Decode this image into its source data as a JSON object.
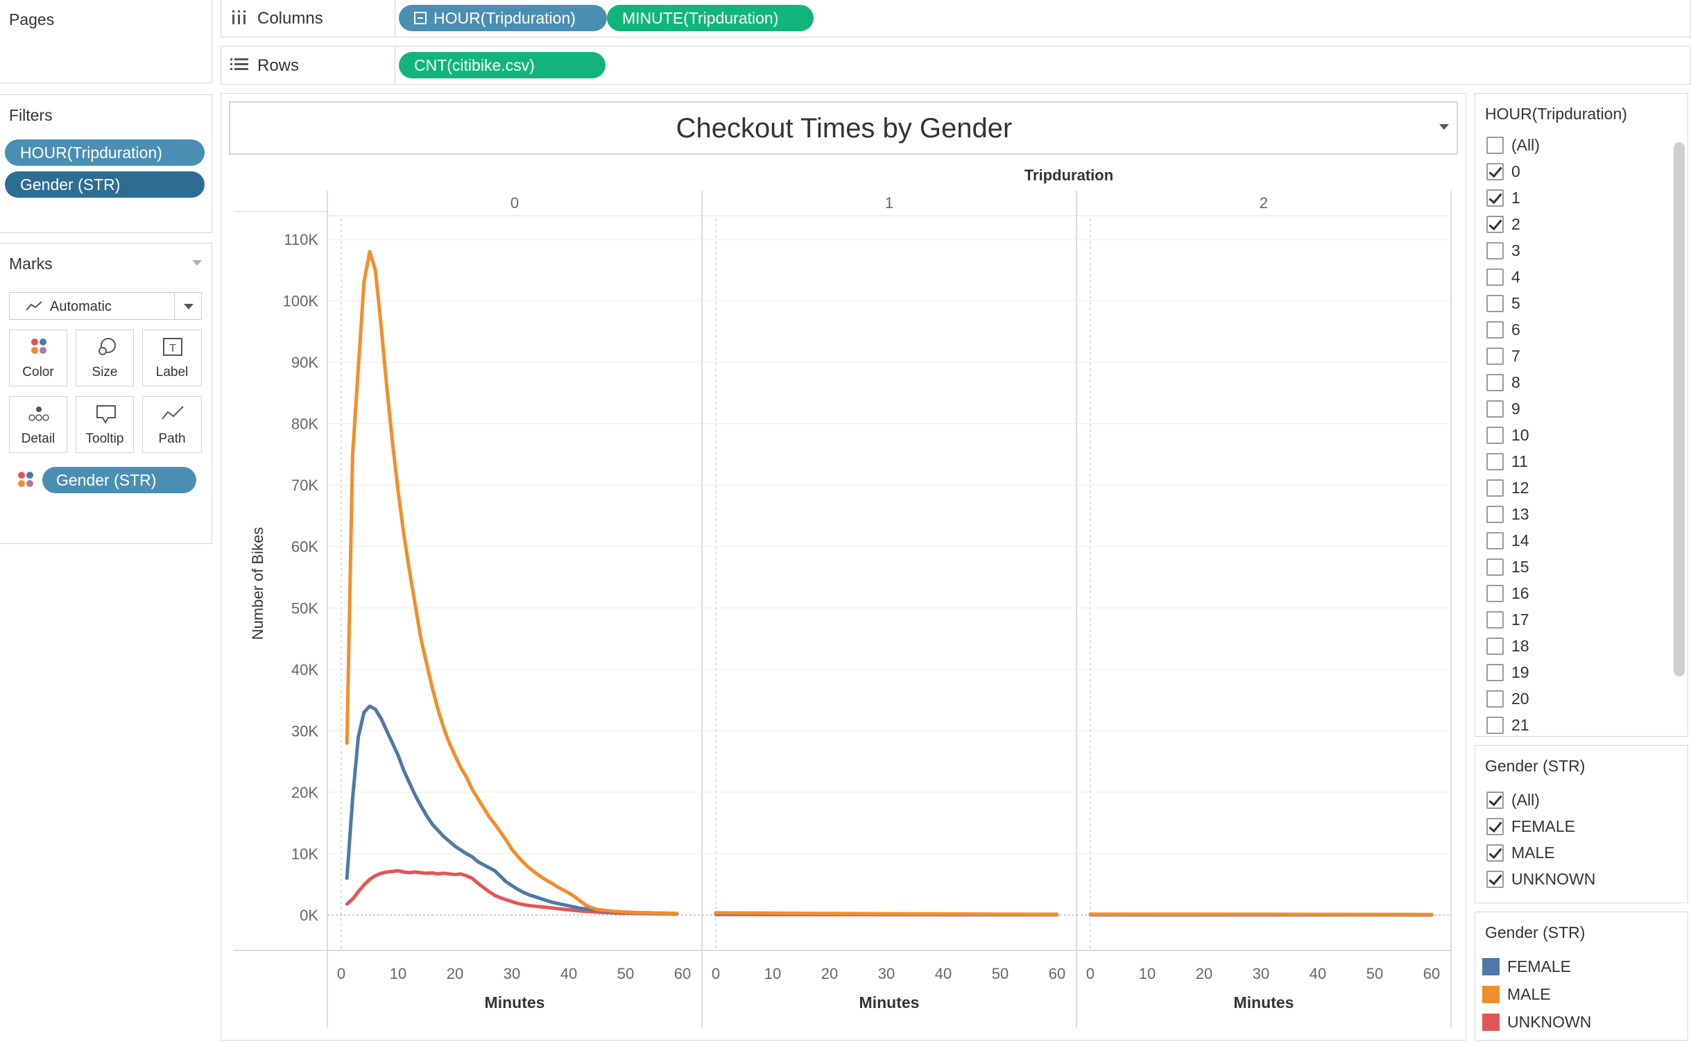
{
  "pages": {
    "title": "Pages"
  },
  "columns_shelf": {
    "label": "Columns",
    "pills": [
      "HOUR(Tripduration)",
      "MINUTE(Tripduration)"
    ]
  },
  "rows_shelf": {
    "label": "Rows",
    "pills": [
      "CNT(citibike.csv)"
    ]
  },
  "filters": {
    "title": "Filters",
    "pills": [
      "HOUR(Tripduration)",
      "Gender (STR)"
    ]
  },
  "marks": {
    "title": "Marks",
    "mark_type": "Automatic",
    "buttons": [
      "Color",
      "Size",
      "Label",
      "Detail",
      "Tooltip",
      "Path"
    ],
    "field_pill": "Gender (STR)"
  },
  "hour_filter": {
    "title": "HOUR(Tripduration)",
    "items": [
      {
        "label": "(All)",
        "checked": false
      },
      {
        "label": "0",
        "checked": true
      },
      {
        "label": "1",
        "checked": true
      },
      {
        "label": "2",
        "checked": true
      },
      {
        "label": "3",
        "checked": false
      },
      {
        "label": "4",
        "checked": false
      },
      {
        "label": "5",
        "checked": false
      },
      {
        "label": "6",
        "checked": false
      },
      {
        "label": "7",
        "checked": false
      },
      {
        "label": "8",
        "checked": false
      },
      {
        "label": "9",
        "checked": false
      },
      {
        "label": "10",
        "checked": false
      },
      {
        "label": "11",
        "checked": false
      },
      {
        "label": "12",
        "checked": false
      },
      {
        "label": "13",
        "checked": false
      },
      {
        "label": "14",
        "checked": false
      },
      {
        "label": "15",
        "checked": false
      },
      {
        "label": "16",
        "checked": false
      },
      {
        "label": "17",
        "checked": false
      },
      {
        "label": "18",
        "checked": false
      },
      {
        "label": "19",
        "checked": false
      },
      {
        "label": "20",
        "checked": false
      },
      {
        "label": "21",
        "checked": false
      }
    ]
  },
  "gender_filter": {
    "title": "Gender (STR)",
    "items": [
      {
        "label": "(All)",
        "checked": true
      },
      {
        "label": "FEMALE",
        "checked": true
      },
      {
        "label": "MALE",
        "checked": true
      },
      {
        "label": "UNKNOWN",
        "checked": true
      }
    ]
  },
  "gender_legend": {
    "title": "Gender (STR)",
    "items": [
      {
        "label": "FEMALE",
        "color": "#4e79a7"
      },
      {
        "label": "MALE",
        "color": "#f28e2b"
      },
      {
        "label": "UNKNOWN",
        "color": "#e15759"
      }
    ]
  },
  "chart_data": {
    "type": "line",
    "title": "Checkout Times by Gender",
    "column_header": "Tripduration",
    "panels": [
      "0",
      "1",
      "2"
    ],
    "xlabel": "Minutes",
    "ylabel": "Number of Bikes",
    "xlim": [
      0,
      60
    ],
    "xticks": [
      0,
      10,
      20,
      30,
      40,
      50,
      60
    ],
    "ylim": [
      0,
      115000
    ],
    "yticks": [
      0,
      10000,
      20000,
      30000,
      40000,
      50000,
      60000,
      70000,
      80000,
      90000,
      100000,
      110000
    ],
    "ytick_labels": [
      "0K",
      "10K",
      "20K",
      "30K",
      "40K",
      "50K",
      "60K",
      "70K",
      "80K",
      "90K",
      "100K",
      "110K"
    ],
    "grid": true,
    "series": [
      {
        "name": "MALE",
        "color": "#f28e2b",
        "panel_values": [
          {
            "x": [
              1,
              2,
              3,
              4,
              5,
              6,
              7,
              8,
              9,
              10,
              11,
              12,
              13,
              14,
              15,
              16,
              17,
              18,
              19,
              20,
              21,
              22,
              23,
              24,
              25,
              26,
              27,
              28,
              29,
              30,
              31,
              32,
              33,
              34,
              35,
              36,
              37,
              38,
              39,
              40,
              41,
              42,
              43,
              44,
              45,
              46,
              47,
              48,
              49,
              50,
              51,
              52,
              53,
              54,
              55,
              56,
              57,
              58,
              59
            ],
            "y": [
              28000,
              75000,
              89000,
              103000,
              108000,
              105000,
              96000,
              86000,
              77000,
              69000,
              62000,
              56000,
              50500,
              45000,
              41000,
              37000,
              33500,
              30500,
              28000,
              26000,
              24000,
              22500,
              20500,
              19000,
              17500,
              16000,
              14800,
              13500,
              12200,
              10700,
              9600,
              8600,
              7700,
              7000,
              6300,
              5700,
              5200,
              4600,
              4100,
              3600,
              3000,
              2300,
              1600,
              1200,
              900,
              800,
              700,
              600,
              550,
              500,
              450,
              400,
              380,
              360,
              340,
              320,
              300,
              280,
              260
            ]
          },
          {
            "x": [
              0,
              10,
              20,
              30,
              40,
              50,
              60
            ],
            "y": [
              350,
              300,
              250,
              200,
              180,
              150,
              120
            ]
          },
          {
            "x": [
              0,
              10,
              20,
              30,
              40,
              50,
              60
            ],
            "y": [
              150,
              140,
              130,
              120,
              110,
              100,
              90
            ]
          }
        ]
      },
      {
        "name": "FEMALE",
        "color": "#4e79a7",
        "panel_values": [
          {
            "x": [
              1,
              2,
              3,
              4,
              5,
              6,
              7,
              8,
              9,
              10,
              11,
              12,
              13,
              14,
              15,
              16,
              17,
              18,
              19,
              20,
              21,
              22,
              23,
              24,
              25,
              26,
              27,
              28,
              29,
              30,
              31,
              32,
              33,
              34,
              35,
              36,
              37,
              38,
              39,
              40,
              41,
              42,
              43,
              44,
              45,
              46,
              47,
              48,
              49,
              50,
              51,
              52,
              53,
              54,
              55,
              56,
              57,
              58,
              59
            ],
            "y": [
              6000,
              19000,
              29000,
              33000,
              34000,
              33500,
              32000,
              30000,
              28000,
              26000,
              23500,
              21500,
              19500,
              17800,
              16200,
              14800,
              13800,
              12800,
              12000,
              11200,
              10600,
              10000,
              9500,
              8700,
              8200,
              7700,
              7200,
              6300,
              5400,
              4800,
              4200,
              3700,
              3300,
              3000,
              2700,
              2400,
              2100,
              1900,
              1700,
              1500,
              1300,
              1100,
              1000,
              900,
              800,
              700,
              600,
              550,
              500,
              450,
              400,
              380,
              360,
              340,
              320,
              300,
              280,
              260,
              240
            ]
          },
          {
            "x": [
              0,
              10,
              20,
              30,
              40,
              50,
              60
            ],
            "y": [
              250,
              200,
              180,
              150,
              130,
              110,
              100
            ]
          },
          {
            "x": [
              0,
              10,
              20,
              30,
              40,
              50,
              60
            ],
            "y": [
              100,
              90,
              80,
              70,
              60,
              55,
              50
            ]
          }
        ]
      },
      {
        "name": "UNKNOWN",
        "color": "#e15759",
        "panel_values": [
          {
            "x": [
              1,
              2,
              3,
              4,
              5,
              6,
              7,
              8,
              9,
              10,
              11,
              12,
              13,
              14,
              15,
              16,
              17,
              18,
              19,
              20,
              21,
              22,
              23,
              24,
              25,
              26,
              27,
              28,
              29,
              30,
              31,
              32,
              33,
              34,
              35,
              36,
              37,
              38,
              39,
              40,
              41,
              42,
              43,
              44,
              45,
              46,
              47,
              48,
              49,
              50,
              51,
              52,
              53,
              54,
              55,
              56,
              57,
              58,
              59
            ],
            "y": [
              1800,
              2600,
              3800,
              4900,
              5800,
              6400,
              6800,
              7000,
              7100,
              7200,
              7000,
              6900,
              7000,
              6900,
              6800,
              6850,
              6700,
              6800,
              6700,
              6600,
              6700,
              6400,
              6000,
              5200,
              4500,
              3800,
              3200,
              2800,
              2500,
              2200,
              1900,
              1700,
              1550,
              1450,
              1350,
              1250,
              1150,
              1050,
              950,
              850,
              760,
              680,
              600,
              540,
              480,
              430,
              390,
              350,
              320,
              300,
              280,
              260,
              240,
              220,
              210,
              200,
              190,
              180,
              170
            ]
          },
          {
            "x": [
              0,
              10,
              20,
              30,
              40,
              50,
              60
            ],
            "y": [
              100,
              90,
              80,
              70,
              60,
              50,
              40
            ]
          },
          {
            "x": [
              0,
              10,
              20,
              30,
              40,
              50,
              60
            ],
            "y": [
              40,
              35,
              30,
              25,
              20,
              18,
              15
            ]
          }
        ]
      }
    ]
  }
}
